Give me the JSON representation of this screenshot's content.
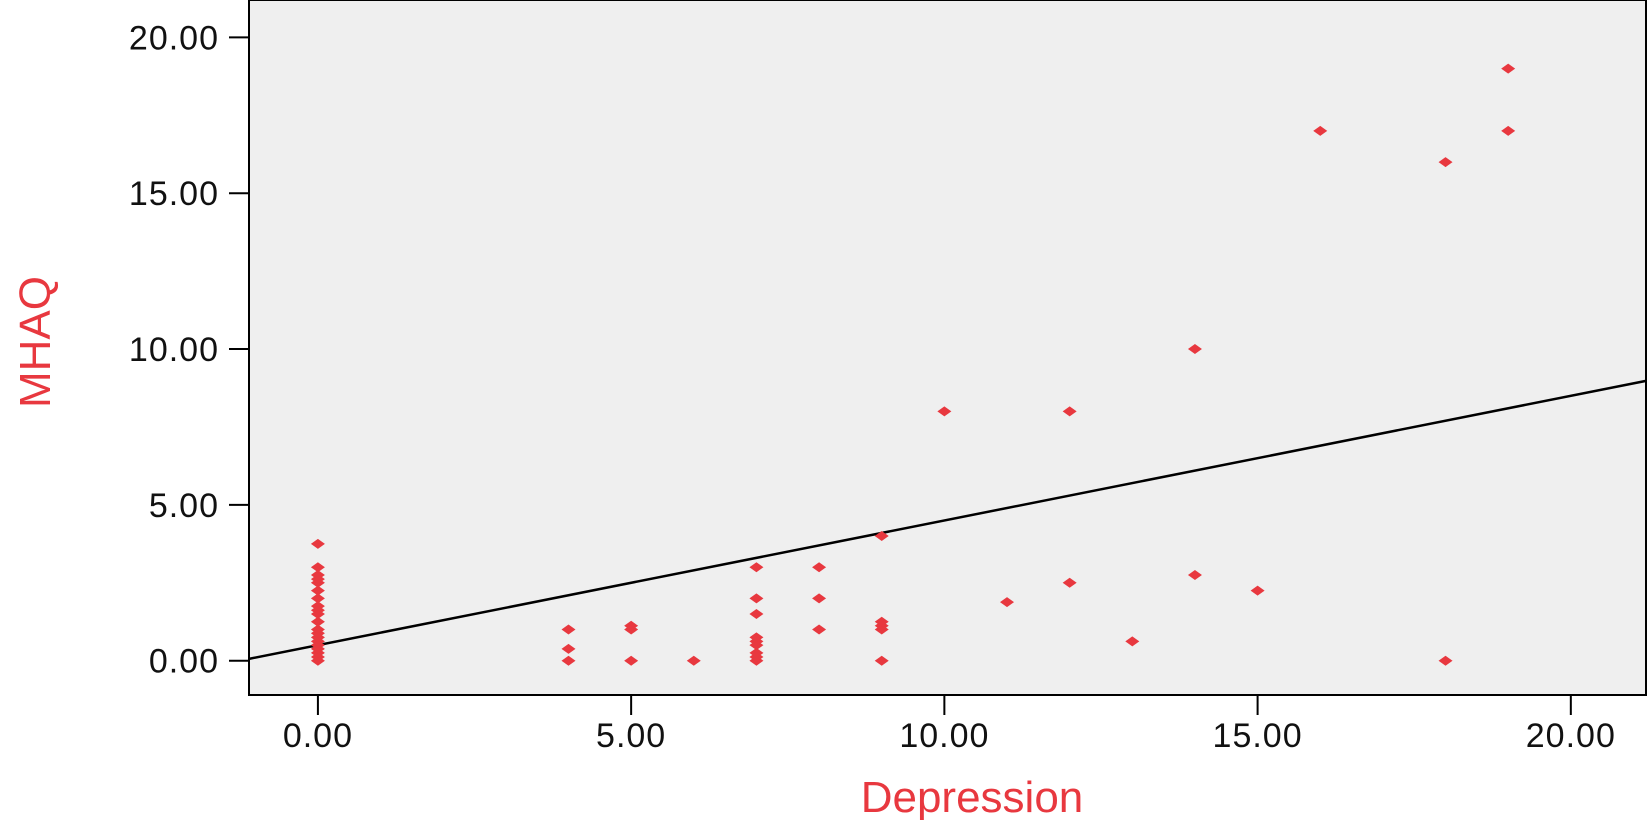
{
  "chart_data": {
    "type": "scatter",
    "title": "",
    "xlabel": "Depression",
    "ylabel": "MHAQ",
    "xlim": [
      -1.1,
      21.2
    ],
    "ylim": [
      -1.1,
      21.2
    ],
    "xticks": [
      "0.00",
      "5.00",
      "10.00",
      "15.00",
      "20.00"
    ],
    "yticks": [
      "0.00",
      "5.00",
      "10.00",
      "15.00",
      "20.00"
    ],
    "xtick_values": [
      0,
      5,
      10,
      15,
      20
    ],
    "ytick_values": [
      0,
      5,
      10,
      15,
      20
    ],
    "grid": false,
    "colors": {
      "points": "#e8383f",
      "line": "#000000",
      "plot_bg": "#efefef",
      "axis_title": "#e8383f"
    },
    "points": [
      [
        0,
        0
      ],
      [
        0,
        0.12
      ],
      [
        0,
        0.25
      ],
      [
        0,
        0.38
      ],
      [
        0,
        0.5
      ],
      [
        0,
        0.62
      ],
      [
        0,
        0.75
      ],
      [
        0,
        0.88
      ],
      [
        0,
        1.0
      ],
      [
        0,
        1.25
      ],
      [
        0,
        1.5
      ],
      [
        0,
        1.62
      ],
      [
        0,
        1.75
      ],
      [
        0,
        2.0
      ],
      [
        0,
        2.25
      ],
      [
        0,
        2.5
      ],
      [
        0,
        2.62
      ],
      [
        0,
        2.75
      ],
      [
        0,
        3.0
      ],
      [
        0,
        3.75
      ],
      [
        4,
        0
      ],
      [
        4,
        0.38
      ],
      [
        4,
        1.0
      ],
      [
        5,
        0
      ],
      [
        5,
        1.0
      ],
      [
        5,
        1.12
      ],
      [
        6,
        0
      ],
      [
        7,
        0
      ],
      [
        7,
        0.12
      ],
      [
        7,
        0.25
      ],
      [
        7,
        0.5
      ],
      [
        7,
        0.62
      ],
      [
        7,
        0.75
      ],
      [
        7,
        1.5
      ],
      [
        7,
        2.0
      ],
      [
        7,
        3.0
      ],
      [
        8,
        1.0
      ],
      [
        8,
        2.0
      ],
      [
        8,
        3.0
      ],
      [
        9,
        0
      ],
      [
        9,
        1.0
      ],
      [
        9,
        1.12
      ],
      [
        9,
        1.25
      ],
      [
        9,
        4.0
      ],
      [
        10,
        8.0
      ],
      [
        11,
        1.88
      ],
      [
        12,
        2.5
      ],
      [
        12,
        8.0
      ],
      [
        13,
        0.62
      ],
      [
        14,
        2.75
      ],
      [
        14,
        10.0
      ],
      [
        15,
        2.25
      ],
      [
        16,
        17.0
      ],
      [
        18,
        0
      ],
      [
        18,
        16.0
      ],
      [
        19,
        17.0
      ],
      [
        19,
        19.0
      ]
    ],
    "regression_line": {
      "intercept": 0.5,
      "slope": 0.4,
      "x_range": [
        -1.1,
        21.2
      ]
    }
  }
}
